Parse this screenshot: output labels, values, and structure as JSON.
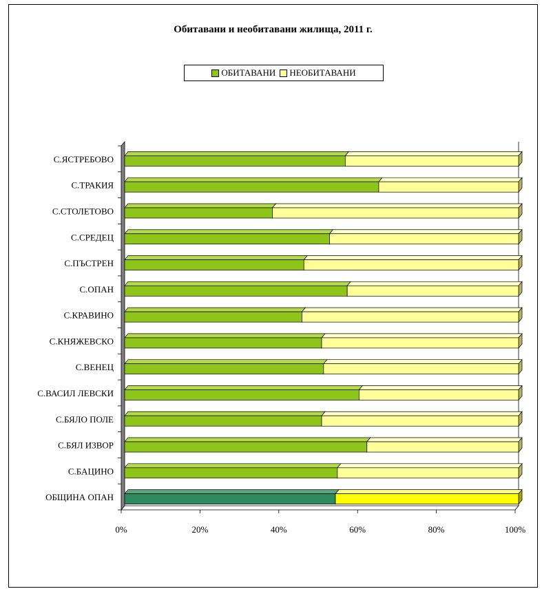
{
  "colors": {
    "inhabited": "#8fc41b",
    "inhabited_top": "#b5d84d",
    "inhabited_side": "#5e7f10",
    "uninhabited": "#ffff99",
    "uninhabited_top": "#ffffcc",
    "uninhabited_side": "#b3b36b",
    "total_inhabited": "#2e8a5e",
    "total_inhabited_top": "#57a77f",
    "total_inhabited_side": "#1f5c40",
    "total_uninhabited": "#ffff00",
    "total_uninhabited_top": "#ffff80",
    "total_uninhabited_side": "#a6a600",
    "wall": "#808080"
  },
  "chart_data": {
    "type": "bar",
    "orientation": "horizontal",
    "stacked": "percent",
    "title": "Обитавани и необитавани жилища, 2011 г.",
    "legend_position": "top",
    "grid": false,
    "xlim": [
      0,
      100
    ],
    "x_ticks": [
      "0%",
      "20%",
      "40%",
      "60%",
      "80%",
      "100%"
    ],
    "categories": [
      "С.ЯСТРЕБОВО",
      "С.ТРАКИЯ",
      "С.СТОЛЕТОВО",
      "С.СРЕДЕЦ",
      "С.ПЪСТРЕН",
      "С.ОПАН",
      "С.КРАВИНО",
      "С.КНЯЖЕВСКО",
      "С.ВЕНЕЦ",
      "С.ВАСИЛ ЛЕВСКИ",
      "С.БЯЛО ПОЛЕ",
      "С.БЯЛ ИЗВОР",
      "С.БАЦИНО",
      "ОБЩИНА ОПАН"
    ],
    "series": [
      {
        "name": "ОБИТАВАНИ",
        "values": [
          56,
          64.5,
          37.5,
          52,
          45.5,
          56.5,
          45,
          50,
          50.5,
          59.5,
          50,
          61.5,
          54,
          53.5
        ]
      },
      {
        "name": "НЕОБИТАВАНИ",
        "values": [
          44,
          35.5,
          62.5,
          48,
          54.5,
          43.5,
          55,
          50,
          49.5,
          40.5,
          50,
          38.5,
          46,
          46.5
        ]
      }
    ]
  }
}
